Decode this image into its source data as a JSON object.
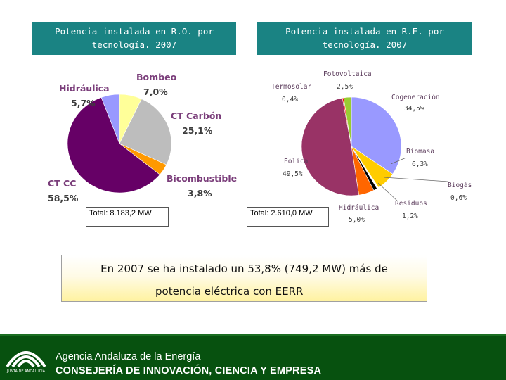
{
  "titles": {
    "left_line1": "Potencia instalada en R.O. por",
    "left_line2": "tecnología. 2007",
    "right_line1": "Potencia instalada en R.E. por",
    "right_line2": "tecnología. 2007"
  },
  "totals": {
    "left": "Total: 8.183,2 MW",
    "right": "Total: 2.610,0 MW"
  },
  "highlight": {
    "line1": "En 2007 se ha instalado un 53,8% (749,2 MW) más de",
    "line2": "potencia eléctrica con EERR"
  },
  "footer": {
    "agency": "Agencia Andaluza de la Energía",
    "ministry": "CONSEJERÍA DE INNOVACIÓN, CIENCIA Y EMPRESA",
    "logo_text": "JUNTA DE ANDALUCIA"
  },
  "chart_data": [
    {
      "type": "pie",
      "title": "Potencia instalada en R.O. por tecnología. 2007",
      "total_label": "Total: 8.183,2 MW",
      "slices": [
        {
          "name": "Bombeo",
          "value": 7.0,
          "label": "7,0%",
          "color": "#ffff99"
        },
        {
          "name": "CT Carbón",
          "value": 25.1,
          "label": "25,1%",
          "color": "#bdbdbd"
        },
        {
          "name": "Bicombustible",
          "value": 3.8,
          "label": "3,8%",
          "color": "#ff9900"
        },
        {
          "name": "CT CC",
          "value": 58.5,
          "label": "58,5%",
          "color": "#660066"
        },
        {
          "name": "Hidráulica",
          "value": 5.7,
          "label": "5,7%",
          "color": "#9999ff"
        }
      ]
    },
    {
      "type": "pie",
      "title": "Potencia instalada en R.E. por tecnología. 2007",
      "total_label": "Total: 2.610,0 MW",
      "slices": [
        {
          "name": "Cogeneración",
          "value": 34.5,
          "label": "34,5%",
          "color": "#9999ff"
        },
        {
          "name": "Biomasa",
          "value": 6.3,
          "label": "6,3%",
          "color": "#ffcc00"
        },
        {
          "name": "Biogás",
          "value": 0.6,
          "label": "0,6%",
          "color": "#ffffff"
        },
        {
          "name": "Residuos",
          "value": 1.2,
          "label": "1,2%",
          "color": "#000000"
        },
        {
          "name": "Hidráulica",
          "value": 5.0,
          "label": "5,0%",
          "color": "#ff6600"
        },
        {
          "name": "Eólica",
          "value": 49.5,
          "label": "49,5%",
          "color": "#993366"
        },
        {
          "name": "Termosolar",
          "value": 0.4,
          "label": "0,4%",
          "color": "#ff0000"
        },
        {
          "name": "Fotovoltaica",
          "value": 2.5,
          "label": "2,5%",
          "color": "#99cc33"
        }
      ]
    }
  ]
}
